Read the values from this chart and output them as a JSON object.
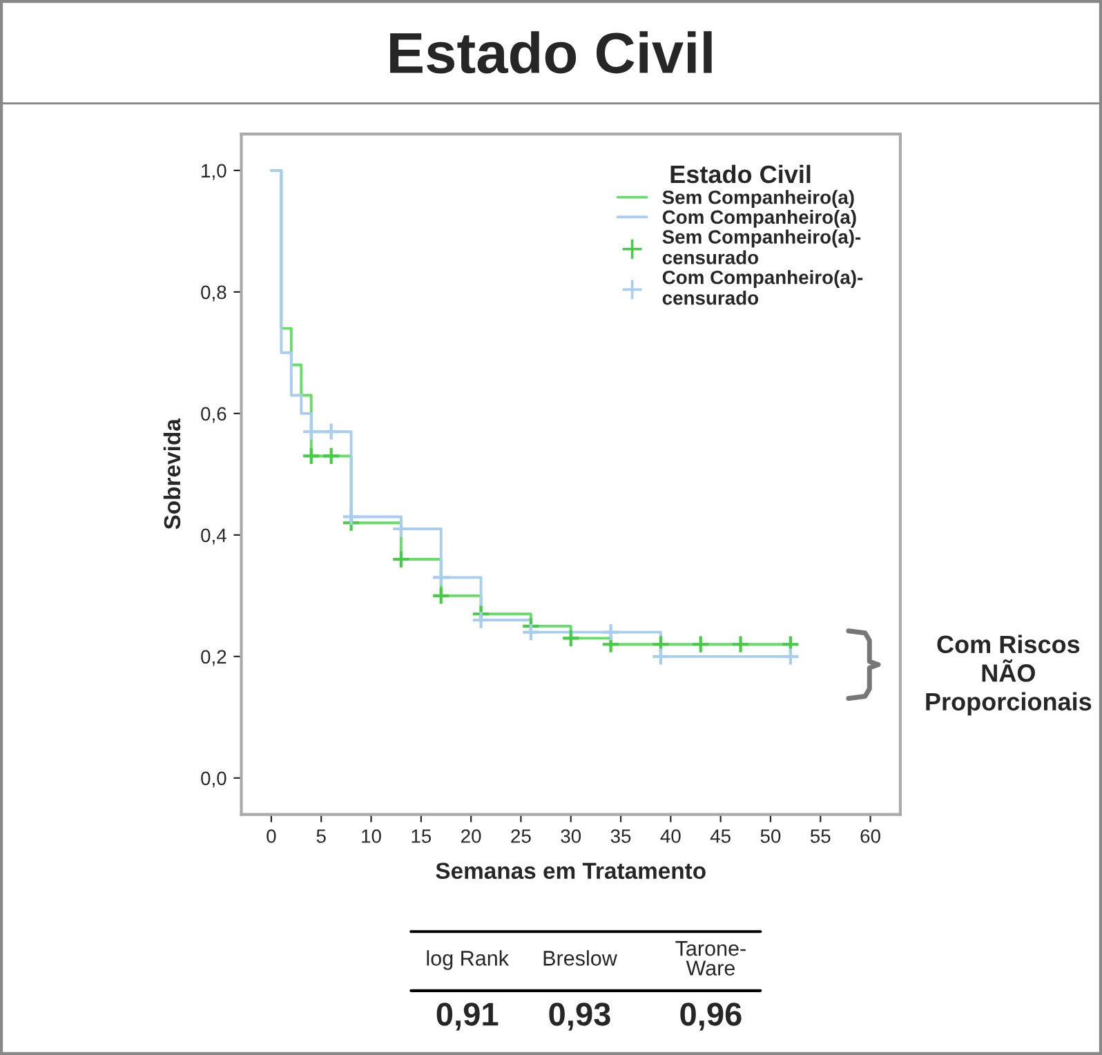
{
  "chart_data": {
    "type": "step",
    "title": "Estado Civil",
    "xlabel": "Semanas em Tratamento",
    "ylabel": "Sobrevida",
    "legend_title": "Estado Civil",
    "series": [
      {
        "name": "Sem Companheiro(a)",
        "color": "#66dd66",
        "x": [
          0,
          1,
          2,
          3,
          4,
          8,
          13,
          17,
          21,
          26,
          30,
          34,
          39,
          52
        ],
        "values": [
          1.0,
          0.74,
          0.68,
          0.63,
          0.53,
          0.42,
          0.36,
          0.3,
          0.27,
          0.25,
          0.23,
          0.22,
          0.22,
          0.22
        ]
      },
      {
        "name": "Com Companheiro(a)",
        "color": "#a8cdef",
        "x": [
          0,
          1,
          2,
          3,
          4,
          8,
          13,
          17,
          21,
          26,
          39,
          52
        ],
        "values": [
          1.0,
          0.7,
          0.63,
          0.6,
          0.57,
          0.43,
          0.41,
          0.33,
          0.26,
          0.24,
          0.2,
          0.2
        ]
      },
      {
        "name": "Sem Companheiro(a)-\ncensurado",
        "type": "scatter",
        "marker": "cross",
        "color": "#44cc44",
        "x": [
          4,
          6,
          8,
          13,
          17,
          21,
          26,
          30,
          34,
          39,
          43,
          47,
          52
        ],
        "values": [
          0.53,
          0.53,
          0.42,
          0.36,
          0.3,
          0.27,
          0.25,
          0.23,
          0.22,
          0.22,
          0.22,
          0.22,
          0.22
        ]
      },
      {
        "name": "Com Companheiro(a)-\ncensurado",
        "type": "scatter",
        "marker": "cross",
        "color": "#a8cdef",
        "x": [
          4,
          6,
          8,
          13,
          17,
          21,
          26,
          34,
          39,
          52
        ],
        "values": [
          0.57,
          0.57,
          0.43,
          0.41,
          0.33,
          0.26,
          0.24,
          0.24,
          0.2,
          0.2
        ]
      }
    ],
    "xlim": [
      -3,
      63
    ],
    "xticks": [
      0,
      5,
      10,
      15,
      20,
      25,
      30,
      35,
      40,
      45,
      50,
      55,
      60
    ],
    "ylim": [
      -0.06,
      1.06
    ],
    "yticks": [
      {
        "value": 0,
        "label": "0,0"
      },
      {
        "value": 0.2,
        "label": "0,2"
      },
      {
        "value": 0.4,
        "label": "0,4"
      },
      {
        "value": 0.6,
        "label": "0,6"
      },
      {
        "value": 0.8,
        "label": "0,8"
      },
      {
        "value": 1.0,
        "label": "1,0"
      }
    ],
    "grid": false,
    "legend": "top right",
    "annotations": [
      "Com Riscos\nNÃO\nProporcionais",
      "log Rank",
      "Breslow",
      "Tarone-\nWare",
      "0,91",
      "0,93",
      "0,96"
    ]
  }
}
